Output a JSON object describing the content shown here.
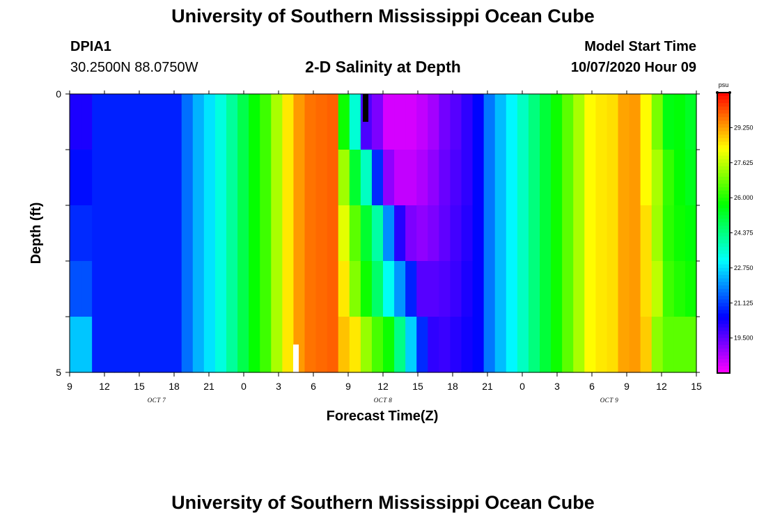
{
  "header": {
    "title_top": "University of Southern Mississippi Ocean Cube",
    "title_bottom": "University of Southern Mississippi Ocean Cube",
    "station_id": "DPIA1",
    "station_coords": "30.2500N 88.0750W",
    "model_label": "Model Start Time",
    "model_time": "10/07/2020 Hour 09"
  },
  "chart_data": {
    "type": "heatmap",
    "title": "2-D Salinity at Depth",
    "xlabel": "Forecast Time(Z)",
    "ylabel": "Depth (ft)",
    "x_tick_labels": [
      "9",
      "12",
      "15",
      "18",
      "21",
      "0",
      "3",
      "6",
      "9",
      "12",
      "15",
      "18",
      "21",
      "0",
      "3",
      "6",
      "9",
      "12",
      "15"
    ],
    "x_tick_hours": [
      0,
      3,
      6,
      9,
      12,
      15,
      18,
      21,
      24,
      27,
      30,
      33,
      36,
      39,
      42,
      45,
      48,
      51,
      54
    ],
    "day_labels": [
      {
        "text": "OCT 7",
        "hour": 7.5
      },
      {
        "text": "OCT 8",
        "hour": 27
      },
      {
        "text": "OCT 9",
        "hour": 46.5
      }
    ],
    "y_tick_labels": [
      "0",
      "5"
    ],
    "ylim": [
      0,
      5
    ],
    "y_inverted": true,
    "depth_rows": 5,
    "time_step_hours": 1,
    "colorbar": {
      "unit": "psu",
      "min": 17.875,
      "max": 30.875,
      "tick_values": [
        19.5,
        21.125,
        22.75,
        24.375,
        26.0,
        27.625,
        29.25
      ],
      "tick_labels": [
        "19.500",
        "21.125",
        "22.750",
        "24.375",
        "26.000",
        "27.625",
        "29.250"
      ]
    },
    "markers": [
      {
        "color": "#000000",
        "hour": 25.5,
        "depth_from": 0,
        "depth_to": 0.5
      },
      {
        "color": "#ffffff",
        "hour": 19.5,
        "depth_from": 4.5,
        "depth_to": 5
      }
    ],
    "salinity_psu": [
      [
        20.2,
        20.2,
        20.8,
        20.8,
        20.8,
        20.8,
        20.8,
        20.8,
        20.8,
        20.8,
        21.6,
        22.3,
        22.8,
        23.4,
        24.1,
        24.9,
        25.7,
        26.3,
        27.4,
        28.5,
        29.3,
        29.7,
        29.8,
        29.9,
        25.8,
        23.5,
        19.7,
        19.2,
        18.3,
        18.3,
        18.3,
        18.5,
        18.8,
        19.3,
        19.6,
        20.0,
        20.5,
        21.7,
        22.4,
        23.0,
        23.7,
        24.4,
        25.1,
        25.8,
        26.6,
        27.4,
        28.3,
        28.5,
        28.6,
        29.2,
        29.3,
        28.3,
        26.9,
        25.5,
        25.6,
        25.3
      ],
      [
        20.6,
        20.6,
        20.8,
        20.8,
        20.8,
        20.8,
        20.8,
        20.8,
        20.8,
        20.8,
        21.6,
        22.3,
        22.8,
        23.4,
        24.1,
        24.9,
        25.7,
        26.3,
        27.4,
        28.5,
        29.3,
        29.7,
        29.8,
        29.9,
        27.3,
        25.2,
        23.7,
        20.9,
        19.0,
        18.5,
        18.5,
        18.7,
        19.0,
        19.4,
        19.7,
        20.0,
        20.5,
        21.7,
        22.4,
        23.0,
        23.7,
        24.4,
        25.1,
        25.8,
        26.6,
        27.4,
        28.3,
        28.5,
        28.6,
        29.2,
        29.3,
        28.3,
        27.4,
        26.2,
        25.7,
        25.4
      ],
      [
        20.9,
        20.9,
        20.8,
        20.8,
        20.8,
        20.8,
        20.8,
        20.8,
        20.8,
        20.8,
        21.6,
        22.3,
        22.8,
        23.4,
        24.1,
        24.9,
        25.7,
        26.3,
        27.4,
        28.5,
        29.3,
        29.7,
        29.8,
        29.9,
        28.0,
        26.6,
        25.2,
        24.0,
        21.9,
        20.1,
        19.2,
        19.0,
        19.2,
        19.5,
        19.8,
        20.1,
        20.5,
        21.7,
        22.4,
        23.0,
        23.7,
        24.4,
        25.1,
        25.8,
        26.6,
        27.4,
        28.3,
        28.5,
        28.6,
        29.2,
        29.3,
        28.6,
        27.3,
        26.1,
        25.8,
        25.6
      ],
      [
        21.3,
        21.3,
        20.8,
        20.8,
        20.8,
        20.8,
        20.8,
        20.8,
        20.8,
        20.8,
        21.6,
        22.3,
        22.8,
        23.4,
        24.1,
        24.9,
        25.7,
        26.3,
        27.4,
        28.5,
        29.3,
        29.7,
        29.8,
        29.9,
        28.5,
        27.0,
        25.8,
        24.6,
        23.2,
        22.0,
        20.8,
        19.6,
        19.6,
        19.7,
        19.9,
        20.2,
        20.5,
        21.7,
        22.4,
        23.0,
        23.7,
        24.4,
        25.1,
        25.8,
        26.6,
        27.4,
        28.3,
        28.5,
        28.6,
        29.2,
        29.3,
        28.6,
        27.6,
        26.3,
        26.0,
        25.8
      ],
      [
        22.5,
        22.5,
        20.8,
        20.8,
        20.8,
        20.8,
        20.8,
        20.8,
        20.8,
        20.8,
        21.6,
        22.3,
        22.8,
        23.4,
        24.1,
        24.9,
        25.7,
        26.3,
        27.4,
        28.5,
        29.3,
        29.7,
        29.8,
        29.9,
        28.9,
        28.5,
        27.2,
        26.4,
        25.8,
        24.3,
        22.6,
        20.9,
        20.0,
        19.9,
        20.1,
        20.3,
        20.5,
        21.7,
        22.4,
        23.0,
        23.7,
        24.4,
        25.1,
        25.8,
        26.6,
        27.4,
        28.3,
        28.5,
        28.6,
        29.2,
        29.3,
        28.8,
        27.1,
        26.6,
        26.6,
        26.6
      ]
    ]
  }
}
